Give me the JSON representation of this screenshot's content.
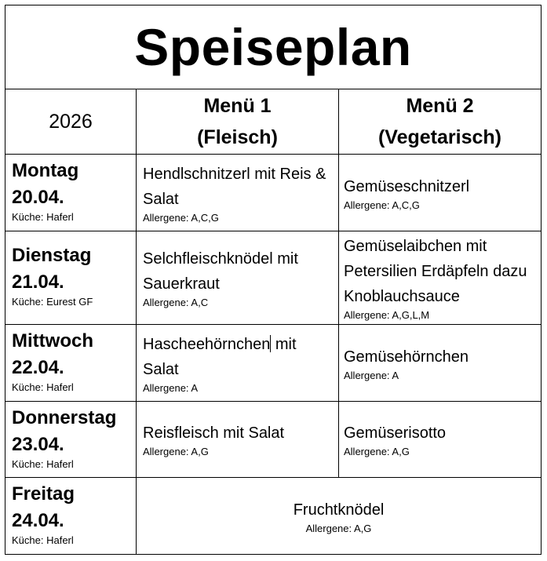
{
  "title": "Speiseplan",
  "header": {
    "year": "2026",
    "menu1_line1": "Menü 1",
    "menu1_line2": "(Fleisch)",
    "menu2_line1": "Menü 2",
    "menu2_line2": "(Vegetarisch)"
  },
  "days": [
    {
      "day": "Montag",
      "date": "20.04.",
      "kitchen": "Küche: Haferl",
      "menu1": {
        "dish": "Hendlschnitzerl mit Reis & Salat",
        "allergens": "Allergene: A,C,G"
      },
      "menu2": {
        "dish": "Gemüseschnitzerl",
        "allergens": "Allergene: A,C,G"
      }
    },
    {
      "day": "Dienstag",
      "date": "21.04.",
      "kitchen": "Küche: Eurest GF",
      "menu1": {
        "dish": "Selchfleischknödel mit Sauerkraut",
        "allergens": "Allergene: A,C"
      },
      "menu2": {
        "dish": "Gemüselaibchen mit Petersilien Erdäpfeln dazu Knoblauchsauce",
        "allergens": "Allergene:  A,G,L,M"
      }
    },
    {
      "day": "Mittwoch",
      "date": "22.04.",
      "kitchen": "Küche: Haferl",
      "menu1": {
        "dish_part1": "Hascheehörnchen",
        "dish_part2": " mit Salat",
        "allergens": "Allergene: A"
      },
      "menu2": {
        "dish": "Gemüsehörnchen",
        "allergens": "Allergene: A"
      }
    },
    {
      "day": "Donnerstag",
      "date": "23.04.",
      "kitchen": "Küche: Haferl",
      "menu1": {
        "dish": "Reisfleisch mit Salat",
        "allergens": "Allergene: A,G"
      },
      "menu2": {
        "dish": "Gemüserisotto",
        "allergens": "Allergene: A,G"
      }
    },
    {
      "day": "Freitag",
      "date": "24.04.",
      "kitchen": "Küche: Haferl",
      "combined": {
        "dish": "Fruchtknödel",
        "allergens": "Allergene: A,G"
      }
    }
  ]
}
